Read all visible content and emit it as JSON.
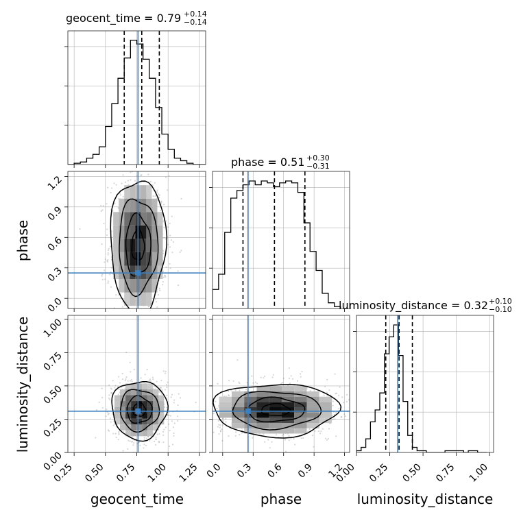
{
  "chart_data": {
    "type": "corner",
    "parameters": [
      "geocent_time",
      "phase",
      "luminosity_distance"
    ],
    "truths": {
      "geocent_time": 0.76,
      "phase": 0.25,
      "luminosity_distance": 0.31
    },
    "colors": {
      "hist": "#000000",
      "truth": "#3b7fbe",
      "grid": "#b0b0b0",
      "frame": "#222222"
    },
    "grid": true,
    "titles": [
      {
        "param": "geocent_time",
        "text": "geocent_time = 0.79",
        "plus": "+0.14",
        "minus": "−0.14"
      },
      {
        "param": "phase",
        "text": "phase = 0.51",
        "plus": "+0.30",
        "minus": "−0.31"
      },
      {
        "param": "luminosity_distance",
        "text": "luminosity_distance = 0.32",
        "plus": "+0.10",
        "minus": "−0.10"
      }
    ],
    "axes": {
      "geocent_time": {
        "range": [
          0.2,
          1.3
        ],
        "ticks": [
          0.25,
          0.5,
          0.75,
          1.0,
          1.25
        ],
        "tick_labels": [
          "0.25",
          "0.50",
          "0.75",
          "1.00",
          "1.25"
        ]
      },
      "phase": {
        "range": [
          -0.1,
          1.25
        ],
        "ticks": [
          0.0,
          0.3,
          0.6,
          0.9,
          1.2
        ],
        "tick_labels": [
          "0.0",
          "0.3",
          "0.6",
          "0.9",
          "1.2"
        ]
      },
      "luminosity_distance": {
        "range": [
          0.0,
          1.03
        ],
        "ticks": [
          0.0,
          0.25,
          0.5,
          0.75,
          1.0
        ],
        "tick_labels": [
          "0.00",
          "0.25",
          "0.50",
          "0.75",
          "1.00"
        ]
      }
    },
    "axis_labels": {
      "x": [
        "geocent_time",
        "phase",
        "luminosity_distance"
      ],
      "y": [
        "phase",
        "luminosity_distance"
      ]
    },
    "quantiles": {
      "geocent_time": [
        0.65,
        0.79,
        0.93
      ],
      "phase": [
        0.2,
        0.51,
        0.81
      ],
      "luminosity_distance": [
        0.22,
        0.32,
        0.42
      ]
    },
    "histograms": {
      "geocent_time": {
        "edges_start": 0.2,
        "bin_width": 0.05,
        "counts": [
          0,
          1,
          2,
          5,
          8,
          14,
          30,
          48,
          68,
          84,
          98,
          95,
          83,
          68,
          45,
          24,
          12,
          5,
          3,
          1,
          0,
          0
        ]
      },
      "phase": {
        "edges_start": -0.1,
        "bin_width": 0.06,
        "counts": [
          10,
          18,
          40,
          58,
          62,
          65,
          67,
          65,
          67,
          66,
          64,
          66,
          67,
          66,
          61,
          45,
          30,
          20,
          8,
          3,
          1
        ]
      },
      "luminosity_distance": {
        "edges_start": 0.0,
        "bin_width": 0.035,
        "counts": [
          1,
          3,
          8,
          18,
          25,
          35,
          58,
          68,
          75,
          57,
          30,
          10,
          3,
          1,
          1,
          0,
          0,
          0,
          0,
          1,
          1,
          1,
          1,
          0,
          1,
          1,
          0,
          0
        ]
      }
    },
    "joint": [
      {
        "x": "geocent_time",
        "y": "phase",
        "center": [
          0.76,
          0.52
        ],
        "sigma": [
          0.1,
          0.3
        ]
      },
      {
        "x": "geocent_time",
        "y": "luminosity_distance",
        "center": [
          0.77,
          0.32
        ],
        "sigma": [
          0.1,
          0.1
        ]
      },
      {
        "x": "phase",
        "y": "luminosity_distance",
        "center": [
          0.52,
          0.32
        ],
        "sigma": [
          0.28,
          0.09
        ]
      }
    ]
  }
}
